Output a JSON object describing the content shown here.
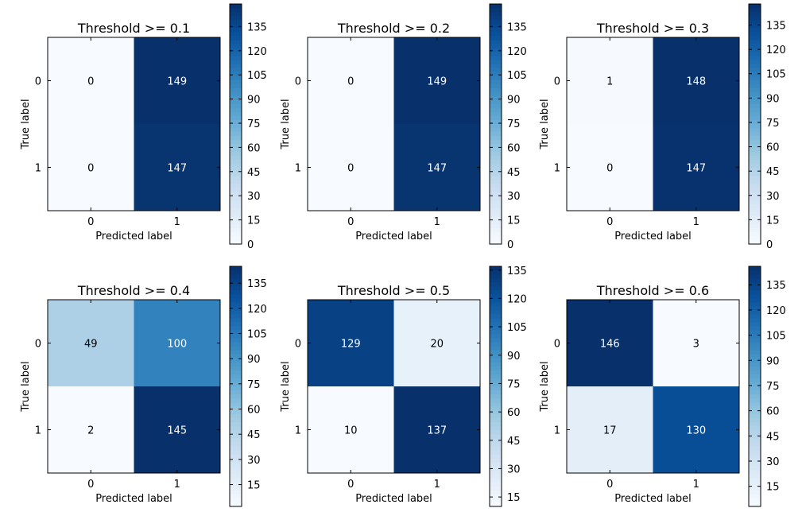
{
  "chart_data": [
    {
      "type": "heatmap",
      "title": "Threshold >= 0.1",
      "xlabel": "Predicted label",
      "ylabel": "True label",
      "x_categories": [
        "0",
        "1"
      ],
      "y_categories": [
        "0",
        "1"
      ],
      "matrix": [
        [
          0,
          149
        ],
        [
          0,
          147
        ]
      ],
      "colorbar": {
        "range": [
          0,
          149
        ],
        "ticks": [
          0,
          15,
          30,
          45,
          60,
          75,
          90,
          105,
          120,
          135
        ]
      }
    },
    {
      "type": "heatmap",
      "title": "Threshold >= 0.2",
      "xlabel": "Predicted label",
      "ylabel": "True label",
      "x_categories": [
        "0",
        "1"
      ],
      "y_categories": [
        "0",
        "1"
      ],
      "matrix": [
        [
          0,
          149
        ],
        [
          0,
          147
        ]
      ],
      "colorbar": {
        "range": [
          0,
          149
        ],
        "ticks": [
          0,
          15,
          30,
          45,
          60,
          75,
          90,
          105,
          120,
          135
        ]
      }
    },
    {
      "type": "heatmap",
      "title": "Threshold >= 0.3",
      "xlabel": "Predicted label",
      "ylabel": "True label",
      "x_categories": [
        "0",
        "1"
      ],
      "y_categories": [
        "0",
        "1"
      ],
      "matrix": [
        [
          1,
          148
        ],
        [
          0,
          147
        ]
      ],
      "colorbar": {
        "range": [
          0,
          148
        ],
        "ticks": [
          0,
          15,
          30,
          45,
          60,
          75,
          90,
          105,
          120,
          135
        ]
      }
    },
    {
      "type": "heatmap",
      "title": "Threshold >= 0.4",
      "xlabel": "Predicted label",
      "ylabel": "True label",
      "x_categories": [
        "0",
        "1"
      ],
      "y_categories": [
        "0",
        "1"
      ],
      "matrix": [
        [
          49,
          100
        ],
        [
          2,
          145
        ]
      ],
      "colorbar": {
        "range": [
          2,
          145
        ],
        "ticks": [
          15,
          30,
          45,
          60,
          75,
          90,
          105,
          120,
          135
        ]
      }
    },
    {
      "type": "heatmap",
      "title": "Threshold >= 0.5",
      "xlabel": "Predicted label",
      "ylabel": "True label",
      "x_categories": [
        "0",
        "1"
      ],
      "y_categories": [
        "0",
        "1"
      ],
      "matrix": [
        [
          129,
          20
        ],
        [
          10,
          137
        ]
      ],
      "colorbar": {
        "range": [
          10,
          137
        ],
        "ticks": [
          15,
          30,
          45,
          60,
          75,
          90,
          105,
          120,
          135
        ]
      }
    },
    {
      "type": "heatmap",
      "title": "Threshold >= 0.6",
      "xlabel": "Predicted label",
      "ylabel": "True label",
      "x_categories": [
        "0",
        "1"
      ],
      "y_categories": [
        "0",
        "1"
      ],
      "matrix": [
        [
          146,
          3
        ],
        [
          17,
          130
        ]
      ],
      "colorbar": {
        "range": [
          3,
          146
        ],
        "ticks": [
          15,
          30,
          45,
          60,
          75,
          90,
          105,
          120,
          135
        ]
      }
    }
  ]
}
